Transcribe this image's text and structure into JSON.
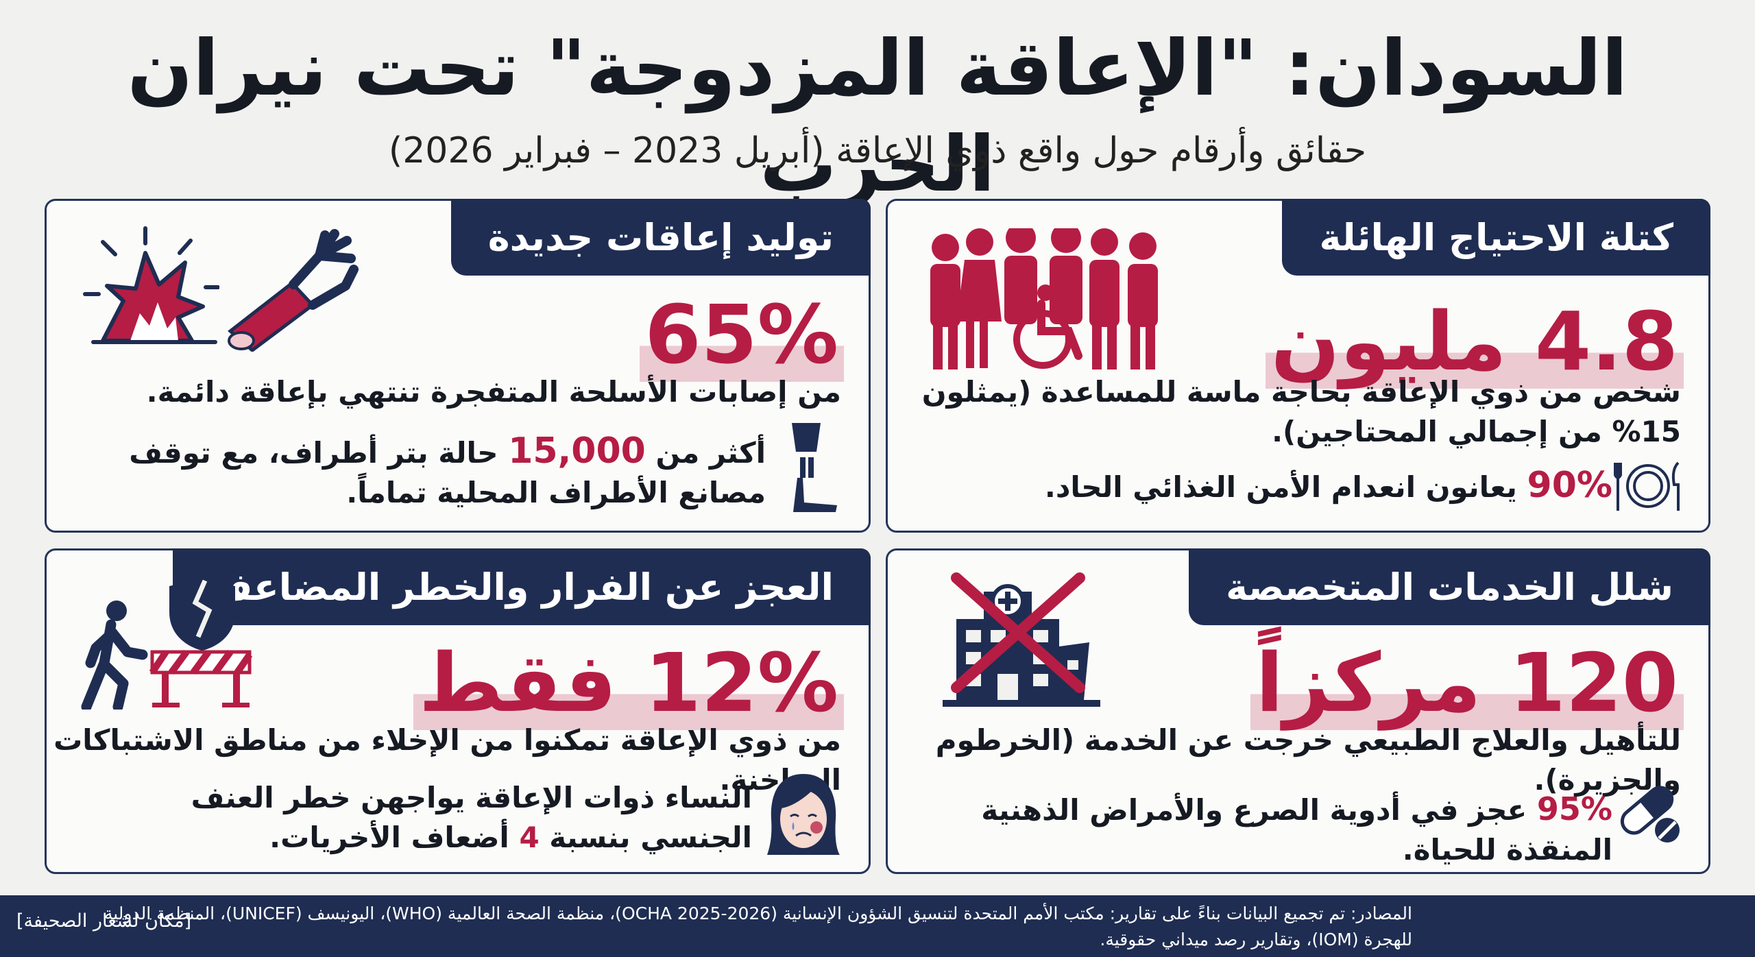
{
  "header": {
    "title": "السودان: \"الإعاقة المزدوجة\" تحت نيران الحرب",
    "subtitle": "حقائق وأرقام حول واقع ذوي الإعاقة (أبريل 2023 – فبراير 2026)"
  },
  "cards": {
    "need": {
      "heading": "كتلة الاحتياج الهائلة",
      "big": "4.8 مليون",
      "text": "شخص من ذوي الإعاقة بحاجة ماسة للمساعدة (يمثلون 15% من إجمالي المحتاجين).",
      "stat_value": "90%",
      "stat_text": "يعانون انعدام الأمن الغذائي الحاد.",
      "icons": [
        "crowd-icon",
        "wheelchair-icon",
        "plate-cutlery-icon"
      ]
    },
    "new": {
      "heading": "توليد إعاقات جديدة",
      "big": "65%",
      "text": "من إصابات الأسلحة المتفجرة تنتهي بإعاقة دائمة.",
      "stat_prefix": "أكثر من",
      "stat_value": "15,000",
      "stat_text": "حالة بتر أطراف، مع توقف مصانع الأطراف المحلية تماماً.",
      "icons": [
        "explosion-icon",
        "amputated-arm-icon",
        "prosthetic-leg-icon"
      ]
    },
    "services": {
      "heading": "شلل الخدمات المتخصصة",
      "big": "120 مركزاً",
      "text": "للتأهيل والعلاج الطبيعي خرجت عن الخدمة (الخرطوم والجزيرة).",
      "stat_value": "95%",
      "stat_text": "عجز في أدوية الصرع والأمراض الذهنية المنقذة للحياة.",
      "icons": [
        "destroyed-hospital-icon",
        "pills-icon"
      ]
    },
    "flee": {
      "heading": "العجز عن الفرار والخطر المضاعف",
      "big": "12% فقط",
      "text": "من ذوي الإعاقة تمكنوا من الإخلاء من مناطق الاشتباكات الساخنة.",
      "stat_text": "النساء ذوات الإعاقة يواجهن خطر العنف الجنسي بنسبة",
      "stat_value": "4",
      "stat_suffix": "أضعاف الأخريات.",
      "icons": [
        "broken-shield-icon",
        "walking-person-icon",
        "barrier-icon",
        "crying-woman-icon"
      ]
    }
  },
  "footer": {
    "sources": "المصادر: تم تجميع البيانات بناءً على تقارير: مكتب الأمم المتحدة لتنسيق الشؤون الإنسانية (OCHA 2025-2026)، منظمة الصحة العالمية (WHO)، اليونيسف (UNICEF)، المنظمة الدولية للهجرة (IOM)، وتقارير رصد ميداني حقوقية.",
    "logo_placeholder": "[مكان لشعار الصحيفة]"
  },
  "colors": {
    "navy": "#1f2d52",
    "crimson": "#b51d44",
    "background": "#f1f1ef"
  }
}
